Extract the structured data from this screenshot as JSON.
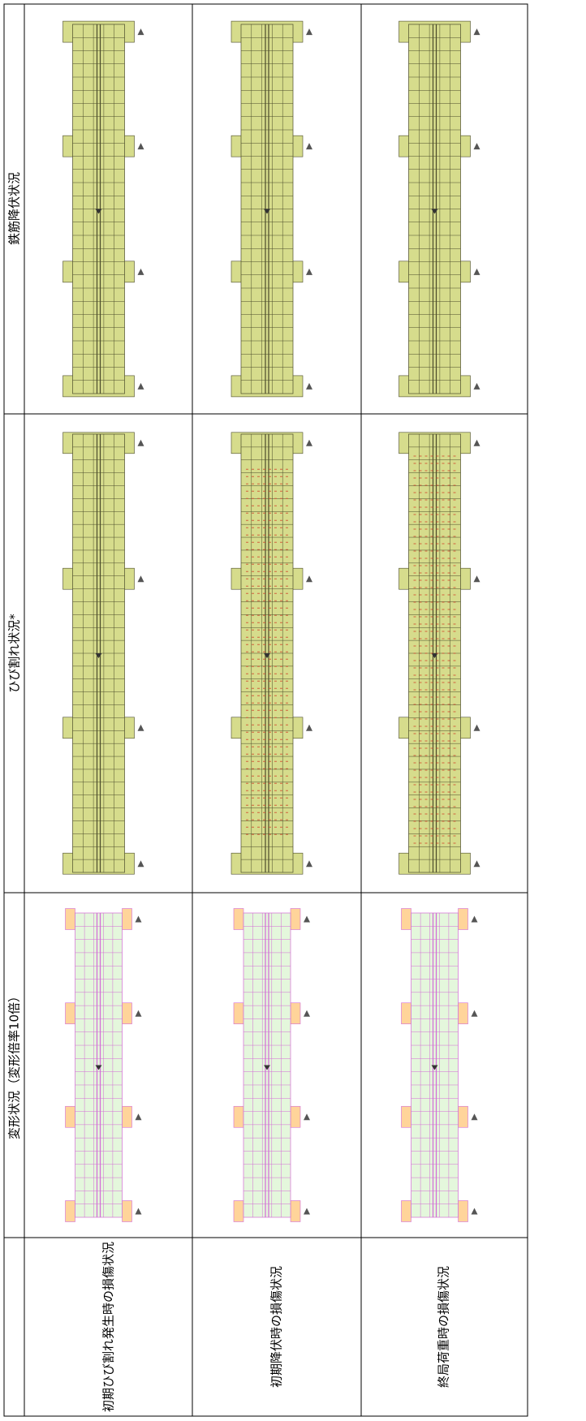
{
  "table": {
    "headers": [
      "鉄筋降伏状況",
      "ひび割れ状況*",
      "変形状況（変形倍率10倍）"
    ],
    "rows": [
      {
        "label": "初期ひび割れ発生時の損傷状況"
      },
      {
        "label": "初期降伏時の損傷状況"
      },
      {
        "label": "終局荷重時の損傷状況"
      }
    ]
  }
}
